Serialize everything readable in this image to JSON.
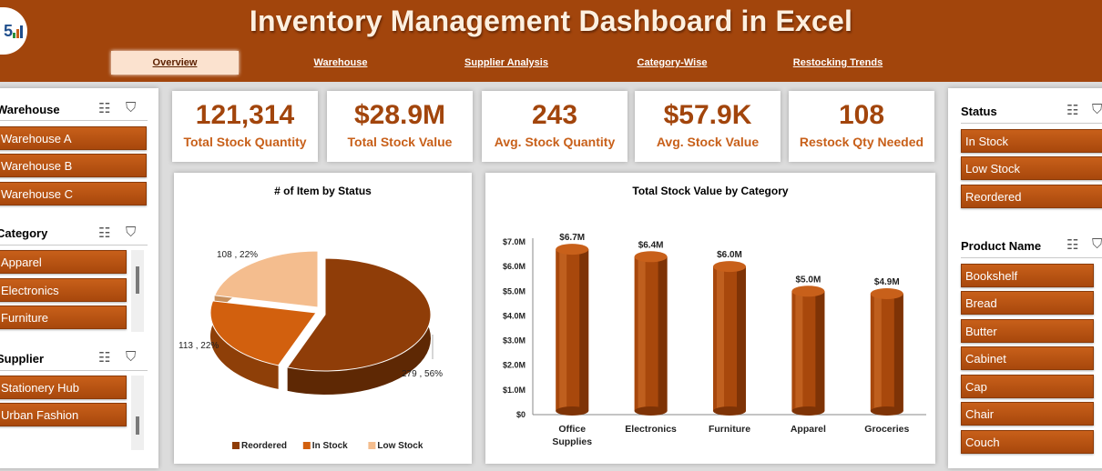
{
  "header": {
    "title": "Inventory Management Dashboard in Excel",
    "tabs": [
      {
        "label": "Overview",
        "active": true
      },
      {
        "label": "Warehouse",
        "active": false
      },
      {
        "label": "Supplier Analysis",
        "active": false
      },
      {
        "label": "Category-Wise",
        "active": false
      },
      {
        "label": "Restocking Trends",
        "active": false
      }
    ]
  },
  "left_slicers": {
    "warehouse": {
      "title": "Warehouse",
      "items": [
        "Warehouse A",
        "Warehouse B",
        "Warehouse C"
      ]
    },
    "category": {
      "title": "Category",
      "items": [
        "Apparel",
        "Electronics",
        "Furniture"
      ]
    },
    "supplier": {
      "title": "Supplier",
      "items": [
        "Stationery Hub",
        "Urban Fashion"
      ]
    }
  },
  "kpis": [
    {
      "value": "121,314",
      "label": "Total Stock Quantity"
    },
    {
      "value": "$28.9M",
      "label": "Total Stock Value"
    },
    {
      "value": "243",
      "label": "Avg. Stock Quantity"
    },
    {
      "value": "$57.9K",
      "label": "Avg.  Stock Value"
    },
    {
      "value": "108",
      "label": "Restock Qty Needed"
    }
  ],
  "right_slicers": {
    "status": {
      "title": "Status",
      "items": [
        "In Stock",
        "Low Stock",
        "Reordered"
      ]
    },
    "product": {
      "title": "Product Name",
      "items": [
        "Bookshelf",
        "Bread",
        "Butter",
        "Cabinet",
        "Cap",
        "Chair",
        "Couch"
      ]
    }
  },
  "colors": {
    "primary": "#a2450c",
    "accent": "#c8601a",
    "reordered": "#8f3d08",
    "in_stock": "#d2600e",
    "low_stock": "#f4bd8e"
  },
  "chart_data": [
    {
      "type": "pie",
      "title": "# of Item by Status",
      "slices": [
        {
          "name": "Reordered",
          "value": 279,
          "label": "279 , 56%"
        },
        {
          "name": "In Stock",
          "value": 113,
          "label": "113 , 22%"
        },
        {
          "name": "Low Stock",
          "value": 108,
          "label": "108 , 22%"
        }
      ],
      "legend": [
        "Reordered",
        "In Stock",
        "Low Stock"
      ],
      "legend_position": "bottom"
    },
    {
      "type": "bar",
      "title": "Total Stock Value by Category",
      "categories": [
        "Office Supplies",
        "Electronics",
        "Furniture",
        "Apparel",
        "Groceries"
      ],
      "values": [
        6.7,
        6.4,
        6.0,
        5.0,
        4.9
      ],
      "data_labels": [
        "$6.7M",
        "$6.4M",
        "$6.0M",
        "$5.0M",
        "$4.9M"
      ],
      "yticks": [
        "$0",
        "$1.0M",
        "$2.0M",
        "$3.0M",
        "$4.0M",
        "$5.0M",
        "$6.0M",
        "$7.0M"
      ],
      "ylim": [
        0,
        7
      ]
    }
  ]
}
